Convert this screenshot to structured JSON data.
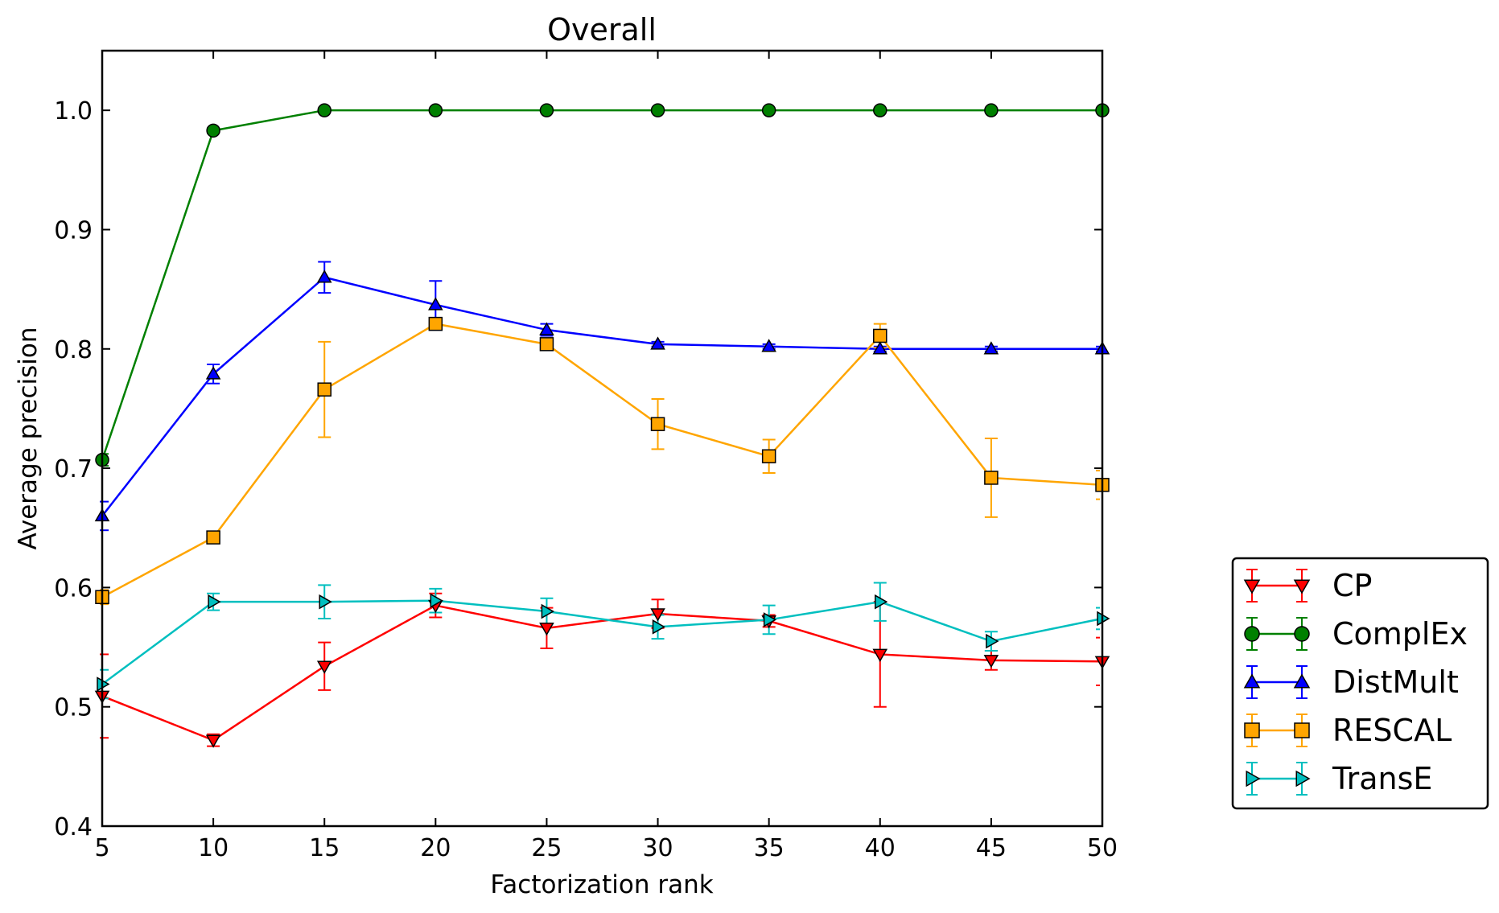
{
  "chart_data": {
    "type": "line",
    "title": "Overall",
    "xlabel": "Factorization rank",
    "ylabel": "Average precision",
    "xlim": [
      5,
      50
    ],
    "ylim": [
      0.4,
      1.05
    ],
    "xticks": [
      5,
      10,
      15,
      20,
      25,
      30,
      35,
      40,
      45,
      50
    ],
    "yticks": [
      0.4,
      0.5,
      0.6,
      0.7,
      0.8,
      0.9,
      1.0
    ],
    "x": [
      5,
      10,
      15,
      20,
      25,
      30,
      35,
      40,
      45,
      50
    ],
    "grid": false,
    "legend_position": "outside-right",
    "error_bars": true,
    "series": [
      {
        "name": "CP",
        "color": "#ff0000",
        "marker": "triangle-down",
        "values": [
          0.509,
          0.472,
          0.534,
          0.585,
          0.566,
          0.578,
          0.572,
          0.544,
          0.539,
          0.538
        ],
        "errors": [
          0.035,
          0.005,
          0.02,
          0.01,
          0.017,
          0.012,
          0.005,
          0.044,
          0.008,
          0.02
        ]
      },
      {
        "name": "ComplEx",
        "color": "#008000",
        "marker": "circle",
        "values": [
          0.707,
          0.983,
          1.0,
          1.0,
          1.0,
          1.0,
          1.0,
          1.0,
          1.0,
          1.0
        ],
        "errors": [
          0.005,
          0.002,
          0.0,
          0.0,
          0.0,
          0.0,
          0.0,
          0.0,
          0.0,
          0.0
        ]
      },
      {
        "name": "DistMult",
        "color": "#0000ff",
        "marker": "triangle-up",
        "values": [
          0.66,
          0.779,
          0.86,
          0.837,
          0.816,
          0.804,
          0.802,
          0.8,
          0.8,
          0.8
        ],
        "errors": [
          0.012,
          0.008,
          0.013,
          0.02,
          0.005,
          0.002,
          0.002,
          0.002,
          0.002,
          0.002
        ]
      },
      {
        "name": "RESCAL",
        "color": "#ffa500",
        "marker": "square",
        "values": [
          0.592,
          0.642,
          0.766,
          0.821,
          0.804,
          0.737,
          0.71,
          0.811,
          0.692,
          0.686
        ],
        "errors": [
          0.006,
          0.003,
          0.04,
          0.004,
          0.004,
          0.021,
          0.014,
          0.01,
          0.033,
          0.012
        ]
      },
      {
        "name": "TransE",
        "color": "#00bfbf",
        "marker": "triangle-right",
        "values": [
          0.519,
          0.588,
          0.588,
          0.589,
          0.58,
          0.567,
          0.573,
          0.588,
          0.555,
          0.574
        ],
        "errors": [
          0.012,
          0.007,
          0.014,
          0.01,
          0.011,
          0.01,
          0.012,
          0.016,
          0.008,
          0.009
        ]
      }
    ]
  }
}
